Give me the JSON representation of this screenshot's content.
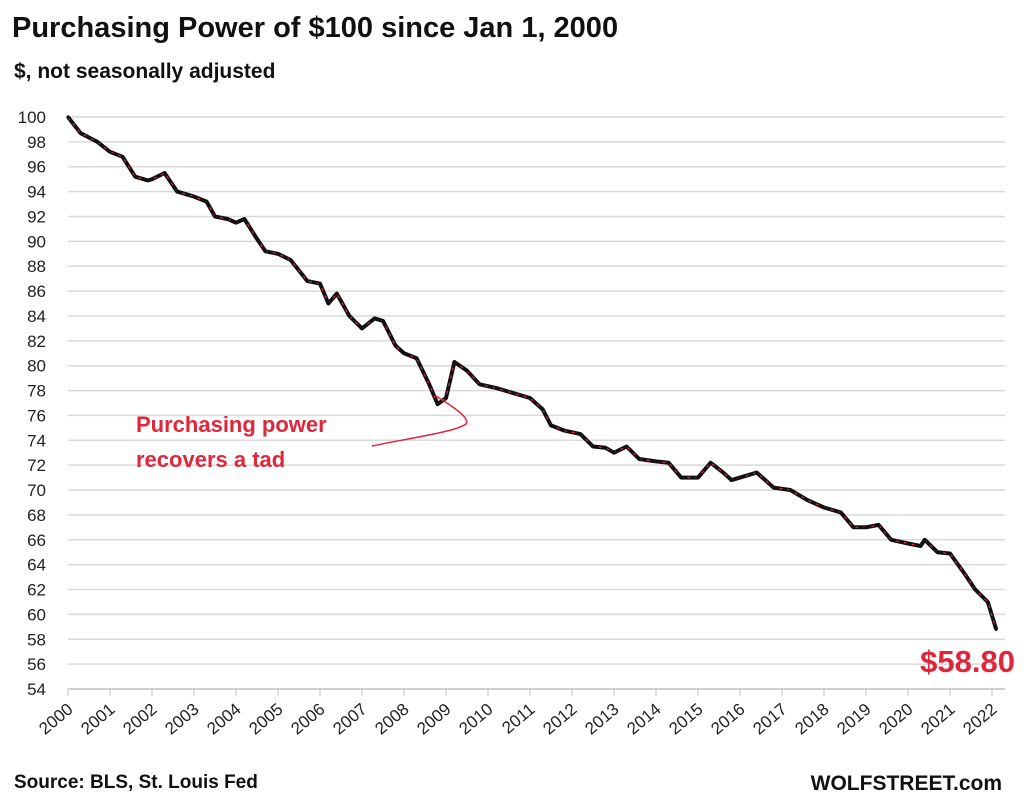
{
  "header": {
    "title": "Purchasing  Power of $100 since Jan 1, 2000",
    "subtitle": "$, not seasonally adjusted"
  },
  "footer": {
    "source": "Source: BLS, St. Louis Fed",
    "brand": "WOLFSTREET.com"
  },
  "colors": {
    "line": "#111111",
    "line_highlight": "#e0263a",
    "annotation": "#e0263a",
    "grid": "#d9d9d9"
  },
  "chart_data": {
    "type": "line",
    "title": "Purchasing  Power of $100 since Jan 1, 2000",
    "subtitle": "$, not seasonally adjusted",
    "xlabel": "",
    "ylabel": "",
    "ylim": [
      54,
      100
    ],
    "xlim": [
      2000,
      2022
    ],
    "yticks": [
      "54",
      "56",
      "58",
      "60",
      "62",
      "64",
      "66",
      "68",
      "70",
      "72",
      "74",
      "76",
      "78",
      "80",
      "82",
      "84",
      "86",
      "88",
      "90",
      "92",
      "94",
      "96",
      "98",
      "100"
    ],
    "xticks": [
      "2000",
      "2001",
      "2002",
      "2003",
      "2004",
      "2005",
      "2006",
      "2007",
      "2008",
      "2009",
      "2010",
      "2011",
      "2012",
      "2013",
      "2014",
      "2015",
      "2016",
      "2017",
      "2018",
      "2019",
      "2020",
      "2021",
      "2022"
    ],
    "grid": true,
    "legend": "none",
    "series": [
      {
        "name": "Purchasing power of $100",
        "x": [
          2000.0,
          2000.3,
          2000.7,
          2001.0,
          2001.3,
          2001.6,
          2001.9,
          2002.0,
          2002.3,
          2002.6,
          2003.0,
          2003.3,
          2003.5,
          2003.8,
          2004.0,
          2004.2,
          2004.5,
          2004.7,
          2005.0,
          2005.3,
          2005.7,
          2006.0,
          2006.2,
          2006.4,
          2006.7,
          2007.0,
          2007.3,
          2007.5,
          2007.8,
          2008.0,
          2008.3,
          2008.6,
          2008.8,
          2009.0,
          2009.2,
          2009.5,
          2009.8,
          2010.2,
          2010.6,
          2011.0,
          2011.3,
          2011.5,
          2011.8,
          2012.2,
          2012.5,
          2012.8,
          2013.0,
          2013.3,
          2013.6,
          2014.0,
          2014.3,
          2014.6,
          2015.0,
          2015.3,
          2015.6,
          2015.8,
          2016.0,
          2016.4,
          2016.8,
          2017.2,
          2017.6,
          2018.0,
          2018.4,
          2018.7,
          2019.0,
          2019.3,
          2019.6,
          2020.0,
          2020.3,
          2020.4,
          2020.7,
          2021.0,
          2021.3,
          2021.6,
          2021.9,
          2022.1
        ],
        "values": [
          100,
          98.7,
          98,
          97.2,
          96.8,
          95.2,
          94.9,
          95.0,
          95.5,
          94.0,
          93.6,
          93.2,
          92.0,
          91.8,
          91.5,
          91.8,
          90.2,
          89.2,
          89.0,
          88.5,
          86.8,
          86.6,
          85.0,
          85.8,
          84.0,
          83.0,
          83.8,
          83.6,
          81.6,
          81.0,
          80.6,
          78.5,
          76.9,
          77.4,
          80.3,
          79.6,
          78.5,
          78.2,
          77.8,
          77.4,
          76.5,
          75.2,
          74.8,
          74.5,
          73.5,
          73.4,
          73.0,
          73.5,
          72.5,
          72.3,
          72.2,
          71.0,
          71.0,
          72.2,
          71.4,
          70.8,
          71.0,
          71.4,
          70.2,
          70.0,
          69.2,
          68.6,
          68.2,
          67.0,
          67.0,
          67.2,
          66.0,
          65.7,
          65.5,
          66.0,
          65.0,
          64.9,
          63.5,
          62.0,
          61.0,
          58.8
        ]
      }
    ],
    "annotations": [
      {
        "text_lines": [
          "Purchasing power",
          "recovers a tad"
        ],
        "points_to_x": 2009.0
      },
      {
        "text": "$58.80",
        "points_to_x": 2022.1
      }
    ]
  }
}
